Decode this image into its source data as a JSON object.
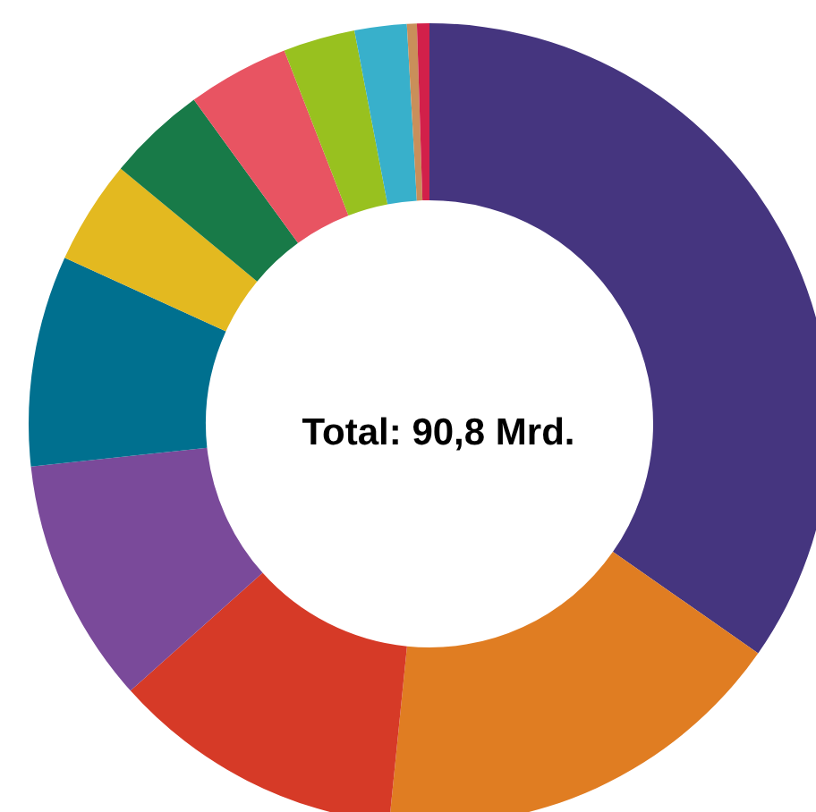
{
  "chart_data": {
    "type": "donut",
    "title": "Total: 90,8 Mrd.",
    "categories": [
      null,
      null,
      null,
      null,
      null,
      null,
      null,
      null,
      null,
      null,
      null,
      null
    ],
    "values": [
      34.7,
      16.9,
      11.8,
      9.9,
      8.5,
      4.2,
      4.0,
      4.1,
      2.9,
      2.1,
      0.4,
      0.5
    ],
    "colors": [
      "#45357f",
      "#e07d22",
      "#d63a27",
      "#7a4a9a",
      "#00708f",
      "#e3b920",
      "#187a48",
      "#e85462",
      "#98c11f",
      "#38b0cb",
      "#c98f5a",
      "#d2204a"
    ]
  }
}
